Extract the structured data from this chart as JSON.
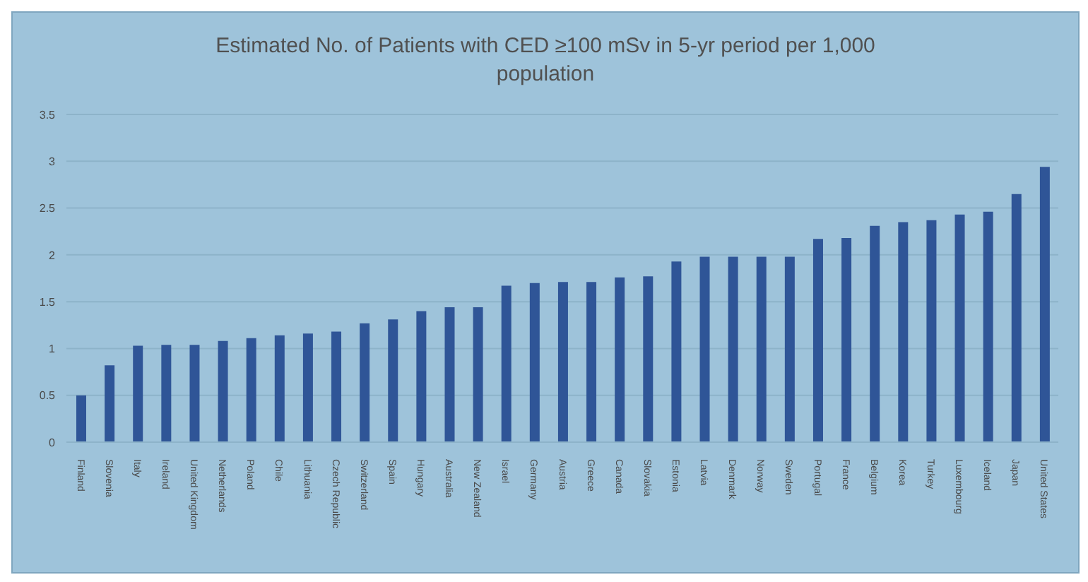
{
  "chart_data": {
    "type": "bar",
    "title": "Estimated No. of  Patients with CED ≥100 mSv in 5-yr period per 1,000 population",
    "categories": [
      "Finland",
      "Slovenia",
      "Italy",
      "Ireland",
      "United Kingdom",
      "Netherlands",
      "Poland",
      "Chile",
      "Lithuania",
      "Czech Republic",
      "Switzerland",
      "Spain",
      "Hungary",
      "Australia",
      "New Zealand",
      "Israel",
      "Germany",
      "Austria",
      "Greece",
      "Canada",
      "Slovakia",
      "Estonia",
      "Latvia",
      "Denmark",
      "Norway",
      "Sweden",
      "Portugal",
      "France",
      "Belgium",
      "Korea",
      "Turkey",
      "Luxembourg",
      "Iceland",
      "Japan",
      "United States"
    ],
    "values": [
      0.5,
      0.82,
      1.03,
      1.04,
      1.04,
      1.08,
      1.11,
      1.14,
      1.16,
      1.18,
      1.27,
      1.31,
      1.4,
      1.44,
      1.44,
      1.67,
      1.7,
      1.71,
      1.71,
      1.76,
      1.77,
      1.93,
      1.98,
      1.98,
      1.98,
      1.98,
      2.17,
      2.18,
      2.31,
      2.35,
      2.37,
      2.43,
      2.46,
      2.65,
      2.94
    ],
    "color": "#2f5597",
    "ylim": [
      0,
      3.5
    ],
    "yticks": [
      0,
      0.5,
      1,
      1.5,
      2,
      2.5,
      3,
      3.5
    ],
    "grid": "y"
  }
}
